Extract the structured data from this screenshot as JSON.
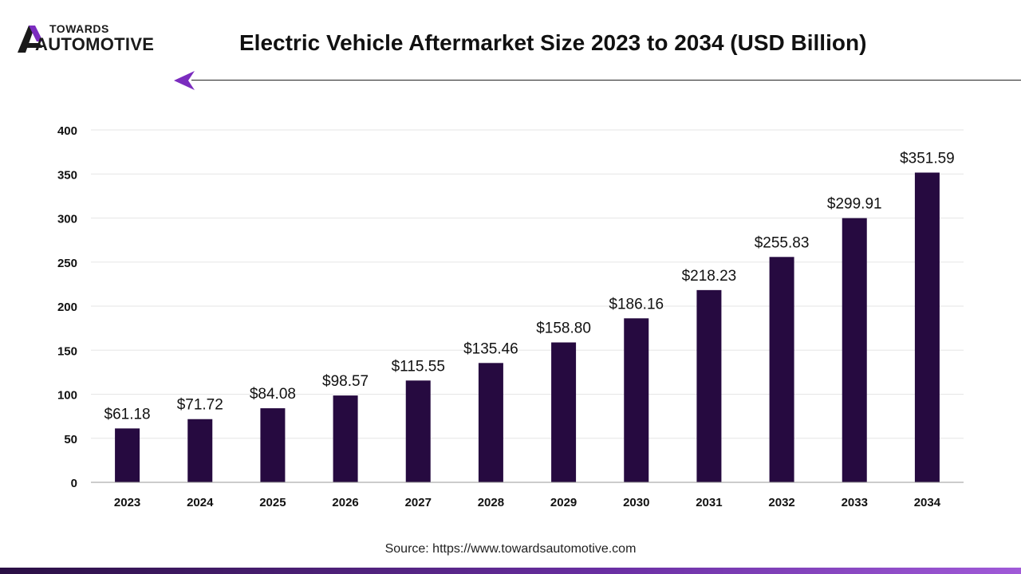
{
  "brand": {
    "name_top": "TOWARDS",
    "name_bottom": "AUTOMOTIVE",
    "logo_icon": "towards-automotive-logo-icon",
    "accent_color": "#7b2cbf"
  },
  "chart_data": {
    "type": "bar",
    "title": "Electric Vehicle Aftermarket Size 2023 to 2034 (USD Billion)",
    "xlabel": "",
    "ylabel": "",
    "categories": [
      "2023",
      "2024",
      "2025",
      "2026",
      "2027",
      "2028",
      "2029",
      "2030",
      "2031",
      "2032",
      "2033",
      "2034"
    ],
    "values": [
      61.18,
      71.72,
      84.08,
      98.57,
      115.55,
      135.46,
      158.8,
      186.16,
      218.23,
      255.83,
      299.91,
      351.59
    ],
    "data_labels": [
      "$61.18",
      "$71.72",
      "$84.08",
      "$98.57",
      "$115.55",
      "$135.46",
      "$158.80",
      "$186.16",
      "$218.23",
      "$255.83",
      "$299.91",
      "$351.59"
    ],
    "ylim": [
      0,
      400
    ],
    "yticks": [
      0,
      50,
      100,
      150,
      200,
      250,
      300,
      350,
      400
    ],
    "grid": true,
    "legend": "none",
    "bar_color": "#260a40"
  },
  "source": "Source: https://www.towardsautomotive.com"
}
